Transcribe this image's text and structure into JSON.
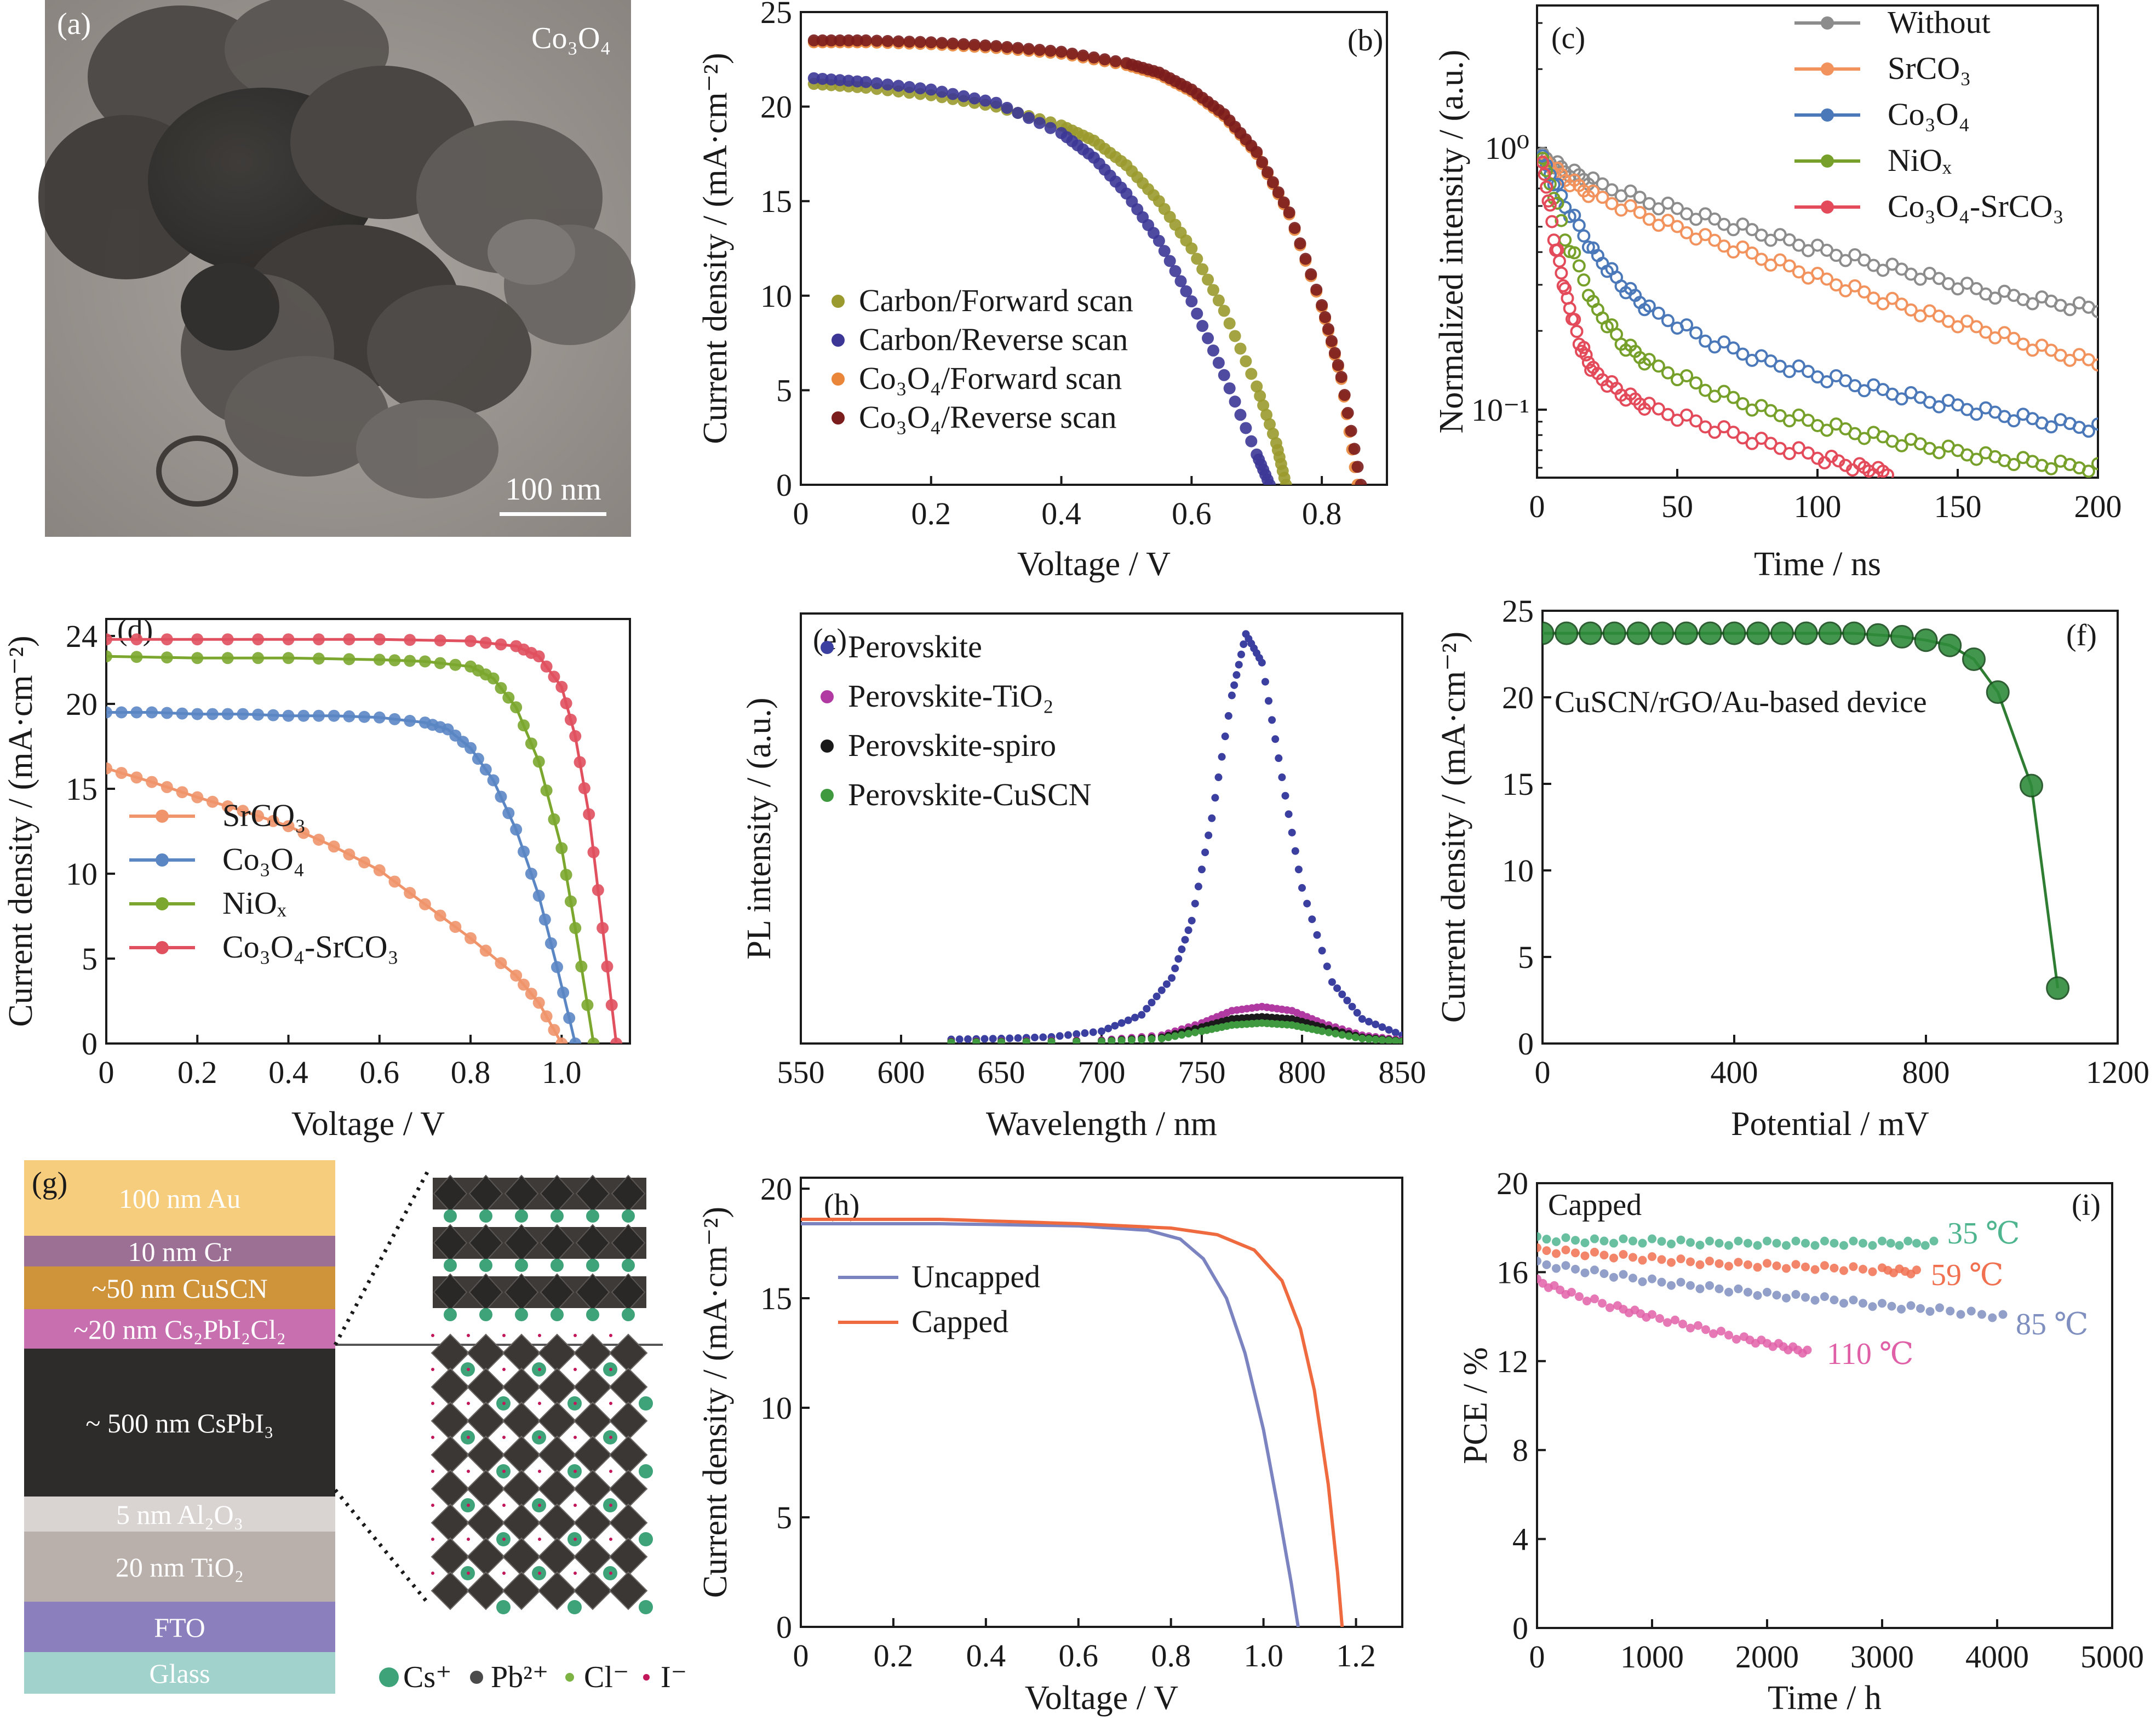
{
  "figure": {
    "panel_labels": [
      "(a)",
      "(b)",
      "(c)",
      "(d)",
      "(e)",
      "(f)",
      "(g)",
      "(h)",
      "(i)"
    ],
    "colors": {
      "axis": "#1a1a1a",
      "text": "#1a1a1a"
    }
  },
  "panel_a": {
    "material": "Co₃O₄",
    "scale_bar": "100 nm"
  },
  "panel_g": {
    "layers": [
      "100 nm Au",
      "10 nm Cr",
      "~50 nm CuSCN",
      "~20 nm Cs₂PbI₂Cl₂",
      "~ 500 nm CsPbI₃",
      "5 nm Al₂O₃",
      "20 nm TiO₂",
      "FTO",
      "Glass"
    ],
    "layer_colors": [
      "#f6cd7c",
      "#9c6f95",
      "#cf943a",
      "#c86fb0",
      "#2e2c2b",
      "#d9d4d1",
      "#b9afab",
      "#8b7fbe",
      "#a2d2cc"
    ],
    "legend": [
      "Cs⁺",
      "Pb²⁺",
      "Cl⁻",
      "I⁻"
    ],
    "legend_colors": [
      "#3fa37a",
      "#4a4a4a",
      "#7cb342",
      "#c2185b"
    ]
  },
  "chart_data": [
    {
      "panel": "(b)",
      "type": "scatter",
      "xlabel": "Voltage / V",
      "ylabel": "Current density / (mA·cm⁻²)",
      "xlim": [
        0,
        0.9
      ],
      "ylim": [
        0,
        25
      ],
      "xticks": [
        "0",
        "0.2",
        "0.4",
        "0.6",
        "0.8"
      ],
      "yticks": [
        "0",
        "5",
        "10",
        "15",
        "20",
        "25"
      ],
      "legend_position": "lower-left",
      "series": [
        {
          "name": "Carbon/Forward scan",
          "color": "#9a9a2e",
          "x": [
            0.02,
            0.1,
            0.2,
            0.3,
            0.4,
            0.45,
            0.5,
            0.55,
            0.6,
            0.65,
            0.7,
            0.73,
            0.745
          ],
          "y": [
            21.2,
            21.0,
            20.6,
            20.0,
            19.0,
            18.2,
            16.9,
            15.0,
            12.5,
            9.2,
            5.2,
            2.2,
            0
          ]
        },
        {
          "name": "Carbon/Reverse scan",
          "color": "#3c3796",
          "x": [
            0.02,
            0.1,
            0.2,
            0.3,
            0.4,
            0.45,
            0.5,
            0.55,
            0.6,
            0.65,
            0.7,
            0.72
          ],
          "y": [
            21.5,
            21.3,
            20.9,
            20.2,
            18.6,
            17.3,
            15.4,
            12.9,
            9.7,
            5.8,
            1.6,
            0
          ]
        },
        {
          "name": "Co₃O₄/Forward scan",
          "color": "#e9863a",
          "x": [
            0.02,
            0.1,
            0.2,
            0.3,
            0.4,
            0.5,
            0.55,
            0.6,
            0.65,
            0.7,
            0.75,
            0.8,
            0.83,
            0.855
          ],
          "y": [
            23.4,
            23.4,
            23.3,
            23.1,
            22.8,
            22.2,
            21.7,
            20.8,
            19.5,
            17.5,
            14.3,
            9.4,
            5.6,
            0
          ]
        },
        {
          "name": "Co₃O₄/Reverse scan",
          "color": "#7b1d1d",
          "x": [
            0.02,
            0.1,
            0.2,
            0.3,
            0.4,
            0.5,
            0.55,
            0.6,
            0.65,
            0.7,
            0.75,
            0.8,
            0.83,
            0.86
          ],
          "y": [
            23.5,
            23.5,
            23.4,
            23.2,
            22.9,
            22.3,
            21.8,
            20.9,
            19.6,
            17.6,
            14.4,
            9.5,
            5.7,
            0
          ]
        }
      ]
    },
    {
      "panel": "(c)",
      "type": "scatter",
      "xlabel": "Time / ns",
      "ylabel": "Normalized intensity / (a.u.)",
      "xlim": [
        0,
        200
      ],
      "ylim": [
        0.055,
        3.5
      ],
      "yscale": "log",
      "xticks": [
        "0",
        "50",
        "100",
        "150",
        "200"
      ],
      "yticks": [
        "10⁻¹",
        "10⁰"
      ],
      "legend_position": "top-right",
      "series": [
        {
          "name": "Without",
          "color": "#8c8c8c",
          "x": [
            2,
            10,
            20,
            40,
            60,
            80,
            100,
            120,
            140,
            160,
            180,
            200
          ],
          "y": [
            0.92,
            0.82,
            0.74,
            0.62,
            0.54,
            0.47,
            0.41,
            0.36,
            0.32,
            0.28,
            0.26,
            0.24
          ]
        },
        {
          "name": "SrCO₃",
          "color": "#f2925d",
          "x": [
            2,
            10,
            20,
            40,
            60,
            80,
            100,
            120,
            140,
            160,
            180,
            200
          ],
          "y": [
            0.9,
            0.76,
            0.66,
            0.54,
            0.45,
            0.38,
            0.32,
            0.27,
            0.23,
            0.2,
            0.17,
            0.15
          ]
        },
        {
          "name": "Co₃O₄",
          "color": "#4a78b8",
          "x": [
            2,
            10,
            20,
            30,
            40,
            60,
            80,
            100,
            120,
            140,
            160,
            180,
            200
          ],
          "y": [
            0.9,
            0.6,
            0.4,
            0.3,
            0.24,
            0.185,
            0.155,
            0.135,
            0.12,
            0.108,
            0.098,
            0.09,
            0.085
          ]
        },
        {
          "name": "NiOₓ",
          "color": "#76a02a",
          "x": [
            2,
            10,
            20,
            30,
            40,
            60,
            80,
            100,
            120,
            140,
            160,
            180,
            200
          ],
          "y": [
            0.88,
            0.45,
            0.25,
            0.18,
            0.15,
            0.12,
            0.1,
            0.088,
            0.079,
            0.072,
            0.066,
            0.062,
            0.06
          ]
        },
        {
          "name": "Co₃O₄-SrCO₃",
          "color": "#e34b5b",
          "x": [
            2,
            6,
            10,
            15,
            20,
            30,
            40,
            60,
            80,
            100,
            115,
            125
          ],
          "y": [
            0.85,
            0.45,
            0.28,
            0.18,
            0.14,
            0.115,
            0.102,
            0.087,
            0.075,
            0.066,
            0.06,
            0.057
          ]
        }
      ]
    },
    {
      "panel": "(d)",
      "type": "line",
      "xlabel": "Voltage / V",
      "ylabel": "Current density / (mA·cm⁻²)",
      "xlim": [
        0,
        1.15
      ],
      "ylim": [
        0,
        25
      ],
      "xticks": [
        "0",
        "0.2",
        "0.4",
        "0.6",
        "0.8",
        "1.0"
      ],
      "yticks": [
        "0",
        "5",
        "10",
        "15",
        "20",
        "24"
      ],
      "legend_position": "lower-left",
      "series": [
        {
          "name": "SrCO₃",
          "color": "#f0956b",
          "x": [
            0,
            0.1,
            0.2,
            0.3,
            0.4,
            0.5,
            0.6,
            0.7,
            0.8,
            0.9,
            0.95,
            1.0
          ],
          "y": [
            16.2,
            15.4,
            14.5,
            13.7,
            12.8,
            11.6,
            10.2,
            8.2,
            6.2,
            4.0,
            2.4,
            0
          ]
        },
        {
          "name": "Co₃O₄",
          "color": "#5b86c4",
          "x": [
            0,
            0.1,
            0.2,
            0.3,
            0.4,
            0.5,
            0.6,
            0.7,
            0.75,
            0.8,
            0.85,
            0.9,
            0.95,
            0.99,
            1.03
          ],
          "y": [
            19.5,
            19.5,
            19.4,
            19.4,
            19.3,
            19.3,
            19.2,
            18.9,
            18.5,
            17.4,
            15.5,
            12.6,
            8.7,
            4.5,
            0
          ]
        },
        {
          "name": "NiOₓ",
          "color": "#7ba72f",
          "x": [
            0,
            0.2,
            0.4,
            0.6,
            0.7,
            0.8,
            0.85,
            0.9,
            0.95,
            1.0,
            1.03,
            1.07
          ],
          "y": [
            22.8,
            22.7,
            22.7,
            22.6,
            22.5,
            22.2,
            21.5,
            19.8,
            16.6,
            11.5,
            6.8,
            0
          ]
        },
        {
          "name": "Co₃O₄-SrCO₃",
          "color": "#e0505e",
          "x": [
            0,
            0.2,
            0.4,
            0.6,
            0.8,
            0.9,
            0.95,
            1.0,
            1.03,
            1.06,
            1.09,
            1.12
          ],
          "y": [
            23.8,
            23.8,
            23.8,
            23.8,
            23.7,
            23.4,
            22.8,
            21.0,
            18.1,
            13.5,
            6.8,
            0
          ]
        }
      ]
    },
    {
      "panel": "(e)",
      "type": "scatter",
      "xlabel": "Wavelength / nm",
      "ylabel": "PL intensity / (a.u.)",
      "xlim": [
        550,
        850
      ],
      "xticks": [
        "550",
        "600",
        "650",
        "700",
        "750",
        "800",
        "850"
      ],
      "legend_position": "top-left",
      "series": [
        {
          "name": "Perovskite",
          "color": "#3b3fa0",
          "x": [
            625,
            650,
            675,
            700,
            720,
            735,
            745,
            755,
            765,
            772,
            780,
            790,
            800,
            815,
            830,
            850
          ],
          "y": [
            0.01,
            0.012,
            0.016,
            0.03,
            0.07,
            0.16,
            0.3,
            0.55,
            0.85,
            1.0,
            0.93,
            0.65,
            0.38,
            0.15,
            0.06,
            0.02
          ]
        },
        {
          "name": "Perovskite-TiO₂",
          "color": "#b03aa2",
          "x": [
            625,
            700,
            730,
            750,
            765,
            780,
            795,
            810,
            830,
            850
          ],
          "y": [
            0.005,
            0.008,
            0.02,
            0.05,
            0.08,
            0.09,
            0.08,
            0.05,
            0.02,
            0.008
          ]
        },
        {
          "name": "Perovskite-spiro",
          "color": "#1a1a1a",
          "x": [
            625,
            700,
            730,
            750,
            765,
            780,
            795,
            810,
            830,
            850
          ],
          "y": [
            0.004,
            0.006,
            0.015,
            0.04,
            0.06,
            0.065,
            0.06,
            0.04,
            0.015,
            0.006
          ]
        },
        {
          "name": "Perovskite-CuSCN",
          "color": "#3f9a3f",
          "x": [
            625,
            700,
            730,
            750,
            765,
            780,
            795,
            810,
            830,
            850
          ],
          "y": [
            0.003,
            0.005,
            0.012,
            0.03,
            0.045,
            0.05,
            0.045,
            0.03,
            0.012,
            0.005
          ]
        }
      ]
    },
    {
      "panel": "(f)",
      "type": "line",
      "xlabel": "Potential / mV",
      "ylabel": "Current density / (mA·cm⁻²)",
      "xlim": [
        0,
        1200
      ],
      "ylim": [
        0,
        25
      ],
      "xticks": [
        "0",
        "400",
        "800",
        "1200"
      ],
      "yticks": [
        "0",
        "5",
        "10",
        "15",
        "20",
        "25"
      ],
      "annotation": "CuSCN/rGO/Au-based device",
      "series": [
        {
          "name": "CuSCN/rGO/Au-based device",
          "color": "#2e7d32",
          "x": [
            0,
            50,
            100,
            150,
            200,
            250,
            300,
            350,
            400,
            450,
            500,
            550,
            600,
            650,
            700,
            750,
            800,
            850,
            900,
            950,
            1020,
            1075
          ],
          "y": [
            23.7,
            23.7,
            23.7,
            23.7,
            23.7,
            23.7,
            23.7,
            23.7,
            23.7,
            23.7,
            23.7,
            23.7,
            23.7,
            23.7,
            23.6,
            23.5,
            23.3,
            23.0,
            22.2,
            20.3,
            14.9,
            3.2
          ]
        }
      ]
    },
    {
      "panel": "(h)",
      "type": "line",
      "xlabel": "Voltage / V",
      "ylabel": "Current density / (mA·cm⁻²)",
      "xlim": [
        0,
        1.3
      ],
      "ylim": [
        0,
        20.5
      ],
      "xticks": [
        "0",
        "0.2",
        "0.4",
        "0.6",
        "0.8",
        "1.0",
        "1.2"
      ],
      "yticks": [
        "0",
        "5",
        "10",
        "15",
        "20"
      ],
      "legend_position": "upper-left",
      "series": [
        {
          "name": "Uncapped",
          "color": "#7b83c0",
          "x": [
            0,
            0.3,
            0.6,
            0.75,
            0.82,
            0.87,
            0.92,
            0.96,
            1.0,
            1.03,
            1.06,
            1.075
          ],
          "y": [
            18.4,
            18.4,
            18.3,
            18.1,
            17.7,
            16.8,
            15.0,
            12.5,
            9.0,
            5.6,
            2.0,
            0
          ]
        },
        {
          "name": "Capped",
          "color": "#ef6a3f",
          "x": [
            0,
            0.3,
            0.6,
            0.8,
            0.9,
            0.98,
            1.04,
            1.08,
            1.11,
            1.14,
            1.16,
            1.17
          ],
          "y": [
            18.6,
            18.6,
            18.4,
            18.2,
            17.9,
            17.2,
            15.8,
            13.6,
            10.8,
            6.5,
            2.5,
            0
          ]
        }
      ]
    },
    {
      "panel": "(i)",
      "type": "scatter",
      "xlabel": "Time / h",
      "ylabel": "PCE / %",
      "xlim": [
        0,
        5000
      ],
      "ylim": [
        0,
        20
      ],
      "xticks": [
        "0",
        "1000",
        "2000",
        "3000",
        "4000",
        "5000"
      ],
      "yticks": [
        "0",
        "4",
        "8",
        "12",
        "16",
        "20"
      ],
      "annotation": "Capped",
      "series": [
        {
          "name": "35 ℃",
          "color": "#4fb58f",
          "x": [
            0,
            500,
            1000,
            1500,
            2000,
            2500,
            3000,
            3450
          ],
          "y": [
            17.5,
            17.4,
            17.4,
            17.3,
            17.3,
            17.3,
            17.3,
            17.3
          ]
        },
        {
          "name": "59 ℃",
          "color": "#f07050",
          "x": [
            0,
            500,
            1000,
            1500,
            2000,
            2500,
            3000,
            3300
          ],
          "y": [
            17.0,
            16.8,
            16.6,
            16.4,
            16.3,
            16.2,
            16.1,
            16.0
          ]
        },
        {
          "name": "85 ℃",
          "color": "#7f8fbf",
          "x": [
            0,
            500,
            1000,
            1500,
            2000,
            2500,
            3000,
            3500,
            4050
          ],
          "y": [
            16.4,
            16.0,
            15.6,
            15.3,
            15.0,
            14.8,
            14.5,
            14.3,
            14.0
          ]
        },
        {
          "name": "110 ℃",
          "color": "#e060a8",
          "x": [
            0,
            300,
            700,
            1000,
            1400,
            1800,
            2100,
            2350
          ],
          "y": [
            15.6,
            15.0,
            14.4,
            14.0,
            13.5,
            13.0,
            12.7,
            12.4
          ]
        }
      ]
    }
  ]
}
